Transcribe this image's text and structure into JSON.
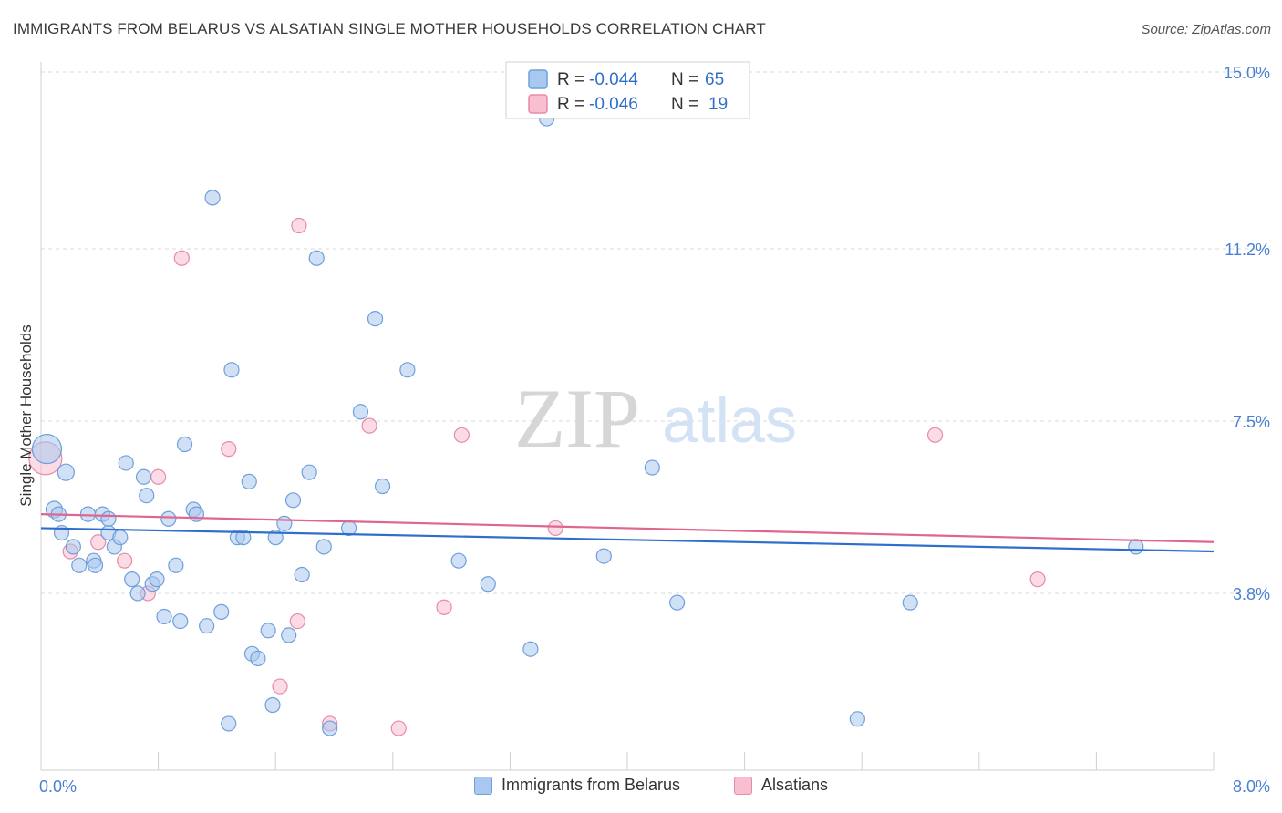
{
  "header": {
    "title": "IMMIGRANTS FROM BELARUS VS ALSATIAN SINGLE MOTHER HOUSEHOLDS CORRELATION CHART",
    "source": "Source: ZipAtlas.com"
  },
  "watermark": {
    "zip": "ZIP",
    "atlas": "atlas"
  },
  "legend": {
    "rows": [
      {
        "r_label": "R =",
        "r_value": "-0.044",
        "n_label": "N =",
        "n_value": "65"
      },
      {
        "r_label": "R =",
        "r_value": "-0.046",
        "n_label": "N =",
        "n_value": "19"
      }
    ]
  },
  "bottom_legend": {
    "series1": "Immigrants from Belarus",
    "series2": "Alsatians"
  },
  "colors": {
    "blue_fill": "#a9c8ef",
    "blue_stroke": "#6f9fdc",
    "blue_line": "#2f6fcc",
    "pink_fill": "#f7bfd0",
    "pink_stroke": "#e88aa8",
    "pink_line": "#e0658f",
    "axis_text": "#4a7fd4",
    "grid": "#d9d9d9"
  },
  "chart_data": {
    "type": "scatter",
    "title": "IMMIGRANTS FROM BELARUS VS ALSATIAN SINGLE MOTHER HOUSEHOLDS CORRELATION CHART",
    "xlabel": "",
    "ylabel": "Single Mother Households",
    "xlim": [
      0,
      8.0
    ],
    "ylim": [
      0,
      15.0
    ],
    "x_tick_labels": [
      "0.0%",
      "8.0%"
    ],
    "y_tick_labels": [
      "3.8%",
      "7.5%",
      "11.2%",
      "15.0%"
    ],
    "y_ticks": [
      3.8,
      7.5,
      11.2,
      15.0
    ],
    "series": [
      {
        "name": "Immigrants from Belarus",
        "r": -0.044,
        "n": 65,
        "trend": {
          "x": [
            0,
            8.0
          ],
          "y": [
            5.2,
            4.7
          ]
        },
        "points": [
          {
            "x": 0.04,
            "y": 6.9,
            "s": 16
          },
          {
            "x": 0.09,
            "y": 5.6,
            "s": 9
          },
          {
            "x": 0.12,
            "y": 5.5,
            "s": 8
          },
          {
            "x": 0.17,
            "y": 6.4,
            "s": 9
          },
          {
            "x": 0.14,
            "y": 5.1,
            "s": 8
          },
          {
            "x": 0.22,
            "y": 4.8,
            "s": 8
          },
          {
            "x": 0.26,
            "y": 4.4,
            "s": 8
          },
          {
            "x": 0.32,
            "y": 5.5,
            "s": 8
          },
          {
            "x": 0.36,
            "y": 4.5,
            "s": 8
          },
          {
            "x": 0.37,
            "y": 4.4,
            "s": 8
          },
          {
            "x": 0.42,
            "y": 5.5,
            "s": 8
          },
          {
            "x": 0.46,
            "y": 5.1,
            "s": 8
          },
          {
            "x": 0.5,
            "y": 4.8,
            "s": 8
          },
          {
            "x": 0.54,
            "y": 5.0,
            "s": 8
          },
          {
            "x": 0.58,
            "y": 6.6,
            "s": 8
          },
          {
            "x": 0.62,
            "y": 4.1,
            "s": 8
          },
          {
            "x": 0.66,
            "y": 3.8,
            "s": 8
          },
          {
            "x": 0.7,
            "y": 6.3,
            "s": 8
          },
          {
            "x": 0.72,
            "y": 5.9,
            "s": 8
          },
          {
            "x": 0.76,
            "y": 4.0,
            "s": 8
          },
          {
            "x": 0.79,
            "y": 4.1,
            "s": 8
          },
          {
            "x": 0.84,
            "y": 3.3,
            "s": 8
          },
          {
            "x": 0.87,
            "y": 5.4,
            "s": 8
          },
          {
            "x": 0.92,
            "y": 4.4,
            "s": 8
          },
          {
            "x": 0.95,
            "y": 3.2,
            "s": 8
          },
          {
            "x": 0.98,
            "y": 7.0,
            "s": 8
          },
          {
            "x": 1.04,
            "y": 5.6,
            "s": 8
          },
          {
            "x": 1.06,
            "y": 5.5,
            "s": 8
          },
          {
            "x": 1.13,
            "y": 3.1,
            "s": 8
          },
          {
            "x": 1.17,
            "y": 12.3,
            "s": 8
          },
          {
            "x": 1.23,
            "y": 3.4,
            "s": 8
          },
          {
            "x": 1.28,
            "y": 1.0,
            "s": 8
          },
          {
            "x": 1.3,
            "y": 8.6,
            "s": 8
          },
          {
            "x": 1.34,
            "y": 5.0,
            "s": 8
          },
          {
            "x": 1.38,
            "y": 5.0,
            "s": 8
          },
          {
            "x": 1.42,
            "y": 6.2,
            "s": 8
          },
          {
            "x": 1.44,
            "y": 2.5,
            "s": 8
          },
          {
            "x": 1.48,
            "y": 2.4,
            "s": 8
          },
          {
            "x": 1.55,
            "y": 3.0,
            "s": 8
          },
          {
            "x": 1.58,
            "y": 1.4,
            "s": 8
          },
          {
            "x": 1.6,
            "y": 5.0,
            "s": 8
          },
          {
            "x": 1.66,
            "y": 5.3,
            "s": 8
          },
          {
            "x": 1.69,
            "y": 2.9,
            "s": 8
          },
          {
            "x": 1.72,
            "y": 5.8,
            "s": 8
          },
          {
            "x": 1.78,
            "y": 4.2,
            "s": 8
          },
          {
            "x": 1.83,
            "y": 6.4,
            "s": 8
          },
          {
            "x": 1.88,
            "y": 11.0,
            "s": 8
          },
          {
            "x": 1.93,
            "y": 4.8,
            "s": 8
          },
          {
            "x": 1.97,
            "y": 0.9,
            "s": 8
          },
          {
            "x": 2.1,
            "y": 5.2,
            "s": 8
          },
          {
            "x": 2.18,
            "y": 7.7,
            "s": 8
          },
          {
            "x": 2.28,
            "y": 9.7,
            "s": 8
          },
          {
            "x": 2.33,
            "y": 6.1,
            "s": 8
          },
          {
            "x": 2.5,
            "y": 8.6,
            "s": 8
          },
          {
            "x": 2.85,
            "y": 4.5,
            "s": 8
          },
          {
            "x": 3.05,
            "y": 4.0,
            "s": 8
          },
          {
            "x": 3.34,
            "y": 2.6,
            "s": 8
          },
          {
            "x": 3.45,
            "y": 14.0,
            "s": 8
          },
          {
            "x": 3.84,
            "y": 4.6,
            "s": 8
          },
          {
            "x": 4.17,
            "y": 6.5,
            "s": 8
          },
          {
            "x": 4.34,
            "y": 3.6,
            "s": 8
          },
          {
            "x": 5.57,
            "y": 1.1,
            "s": 8
          },
          {
            "x": 5.93,
            "y": 3.6,
            "s": 8
          },
          {
            "x": 7.47,
            "y": 4.8,
            "s": 8
          },
          {
            "x": 0.46,
            "y": 5.4,
            "s": 8
          }
        ]
      },
      {
        "name": "Alsatians",
        "r": -0.046,
        "n": 19,
        "trend": {
          "x": [
            0,
            8.0
          ],
          "y": [
            5.5,
            4.9
          ]
        },
        "points": [
          {
            "x": 0.03,
            "y": 6.7,
            "s": 18
          },
          {
            "x": 0.2,
            "y": 4.7,
            "s": 8
          },
          {
            "x": 0.39,
            "y": 4.9,
            "s": 8
          },
          {
            "x": 0.57,
            "y": 4.5,
            "s": 8
          },
          {
            "x": 0.73,
            "y": 3.8,
            "s": 8
          },
          {
            "x": 0.8,
            "y": 6.3,
            "s": 8
          },
          {
            "x": 0.96,
            "y": 11.0,
            "s": 8
          },
          {
            "x": 1.28,
            "y": 6.9,
            "s": 8
          },
          {
            "x": 1.63,
            "y": 1.8,
            "s": 8
          },
          {
            "x": 1.75,
            "y": 3.2,
            "s": 8
          },
          {
            "x": 1.76,
            "y": 11.7,
            "s": 8
          },
          {
            "x": 1.97,
            "y": 1.0,
            "s": 8
          },
          {
            "x": 2.24,
            "y": 7.4,
            "s": 8
          },
          {
            "x": 2.44,
            "y": 0.9,
            "s": 8
          },
          {
            "x": 2.75,
            "y": 3.5,
            "s": 8
          },
          {
            "x": 2.87,
            "y": 7.2,
            "s": 8
          },
          {
            "x": 3.51,
            "y": 5.2,
            "s": 8
          },
          {
            "x": 6.1,
            "y": 7.2,
            "s": 8
          },
          {
            "x": 6.8,
            "y": 4.1,
            "s": 8
          }
        ]
      }
    ]
  }
}
